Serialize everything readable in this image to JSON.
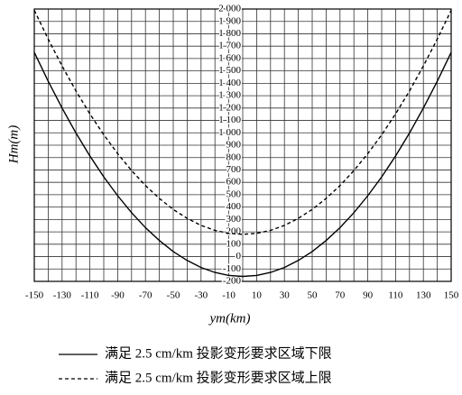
{
  "chart_data": {
    "type": "line",
    "xlabel": "ym(km)",
    "ylabel": "Hm(m)",
    "x": [
      -150,
      -140,
      -130,
      -120,
      -110,
      -100,
      -90,
      -80,
      -70,
      -60,
      -50,
      -40,
      -30,
      -20,
      -10,
      0,
      10,
      20,
      30,
      40,
      50,
      60,
      70,
      80,
      90,
      100,
      110,
      120,
      130,
      140,
      150
    ],
    "series": [
      {
        "name": "满足 2.5 cm/km 投影变形要求区域下限",
        "color": "#000000",
        "style": "solid",
        "values": [
          1650,
          1417,
          1200,
          998,
          813,
          644,
          492,
          355,
          234,
          130,
          41,
          -31,
          -88,
          -128,
          -152,
          -160,
          -152,
          -128,
          -88,
          -31,
          41,
          130,
          234,
          355,
          492,
          644,
          813,
          998,
          1200,
          1417,
          1650
        ]
      },
      {
        "name": "满足 2.5 cm/km 投影变形要求区域上限",
        "color": "#000000",
        "style": "dashed",
        "values": [
          1990,
          1757,
          1540,
          1338,
          1153,
          984,
          832,
          695,
          574,
          470,
          381,
          309,
          252,
          212,
          188,
          180,
          188,
          212,
          252,
          309,
          381,
          470,
          574,
          695,
          832,
          984,
          1153,
          1338,
          1540,
          1757,
          1990
        ]
      }
    ],
    "xlim": [
      -150,
      150
    ],
    "ylim": [
      -200,
      2000
    ],
    "xticks": [
      -150,
      -130,
      -110,
      -90,
      -70,
      -50,
      -30,
      -10,
      10,
      30,
      50,
      70,
      90,
      110,
      130,
      150
    ],
    "yticks": [
      -200,
      -100,
      0,
      100,
      200,
      300,
      400,
      500,
      600,
      700,
      800,
      900,
      {
        "value": 1000,
        "label": "1 000"
      },
      {
        "value": 1100,
        "label": "1 100"
      },
      {
        "value": 1200,
        "label": "1 200"
      },
      {
        "value": 1300,
        "label": "1 300"
      },
      {
        "value": 1400,
        "label": "1 400"
      },
      {
        "value": 1500,
        "label": "1 500"
      },
      {
        "value": 1600,
        "label": "1 600"
      },
      {
        "value": 1700,
        "label": "1 700"
      },
      {
        "value": 1800,
        "label": "1 800"
      },
      {
        "value": 1900,
        "label": "1 900"
      },
      {
        "value": 2000,
        "label": "2 000"
      }
    ],
    "grid": true
  }
}
